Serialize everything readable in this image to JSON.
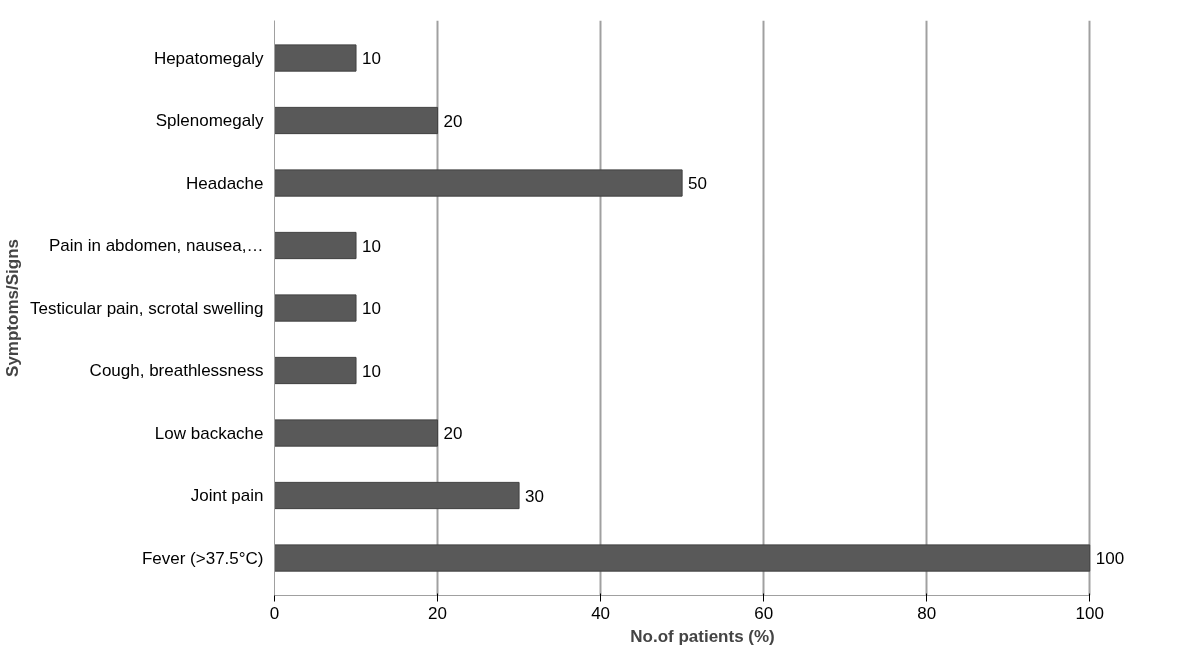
{
  "chart_data": {
    "type": "bar",
    "orientation": "horizontal",
    "xlabel": "No.of patients (%)",
    "ylabel": "Symptoms/Signs",
    "categories": [
      "Hepatomegaly",
      "Splenomegaly",
      "Headache",
      "Pain in abdomen, nausea,…",
      "Testicular pain, scrotal swelling",
      "Cough, breathlessness",
      "Low backache",
      "Joint pain",
      "Fever (>37.5°C)"
    ],
    "values": [
      10,
      20,
      50,
      10,
      10,
      10,
      20,
      30,
      100
    ],
    "color": "#595959",
    "xlim": [
      0,
      100
    ],
    "xticks": [
      0,
      20,
      40,
      60,
      80,
      100
    ],
    "grid": "x",
    "data_labels": true
  }
}
